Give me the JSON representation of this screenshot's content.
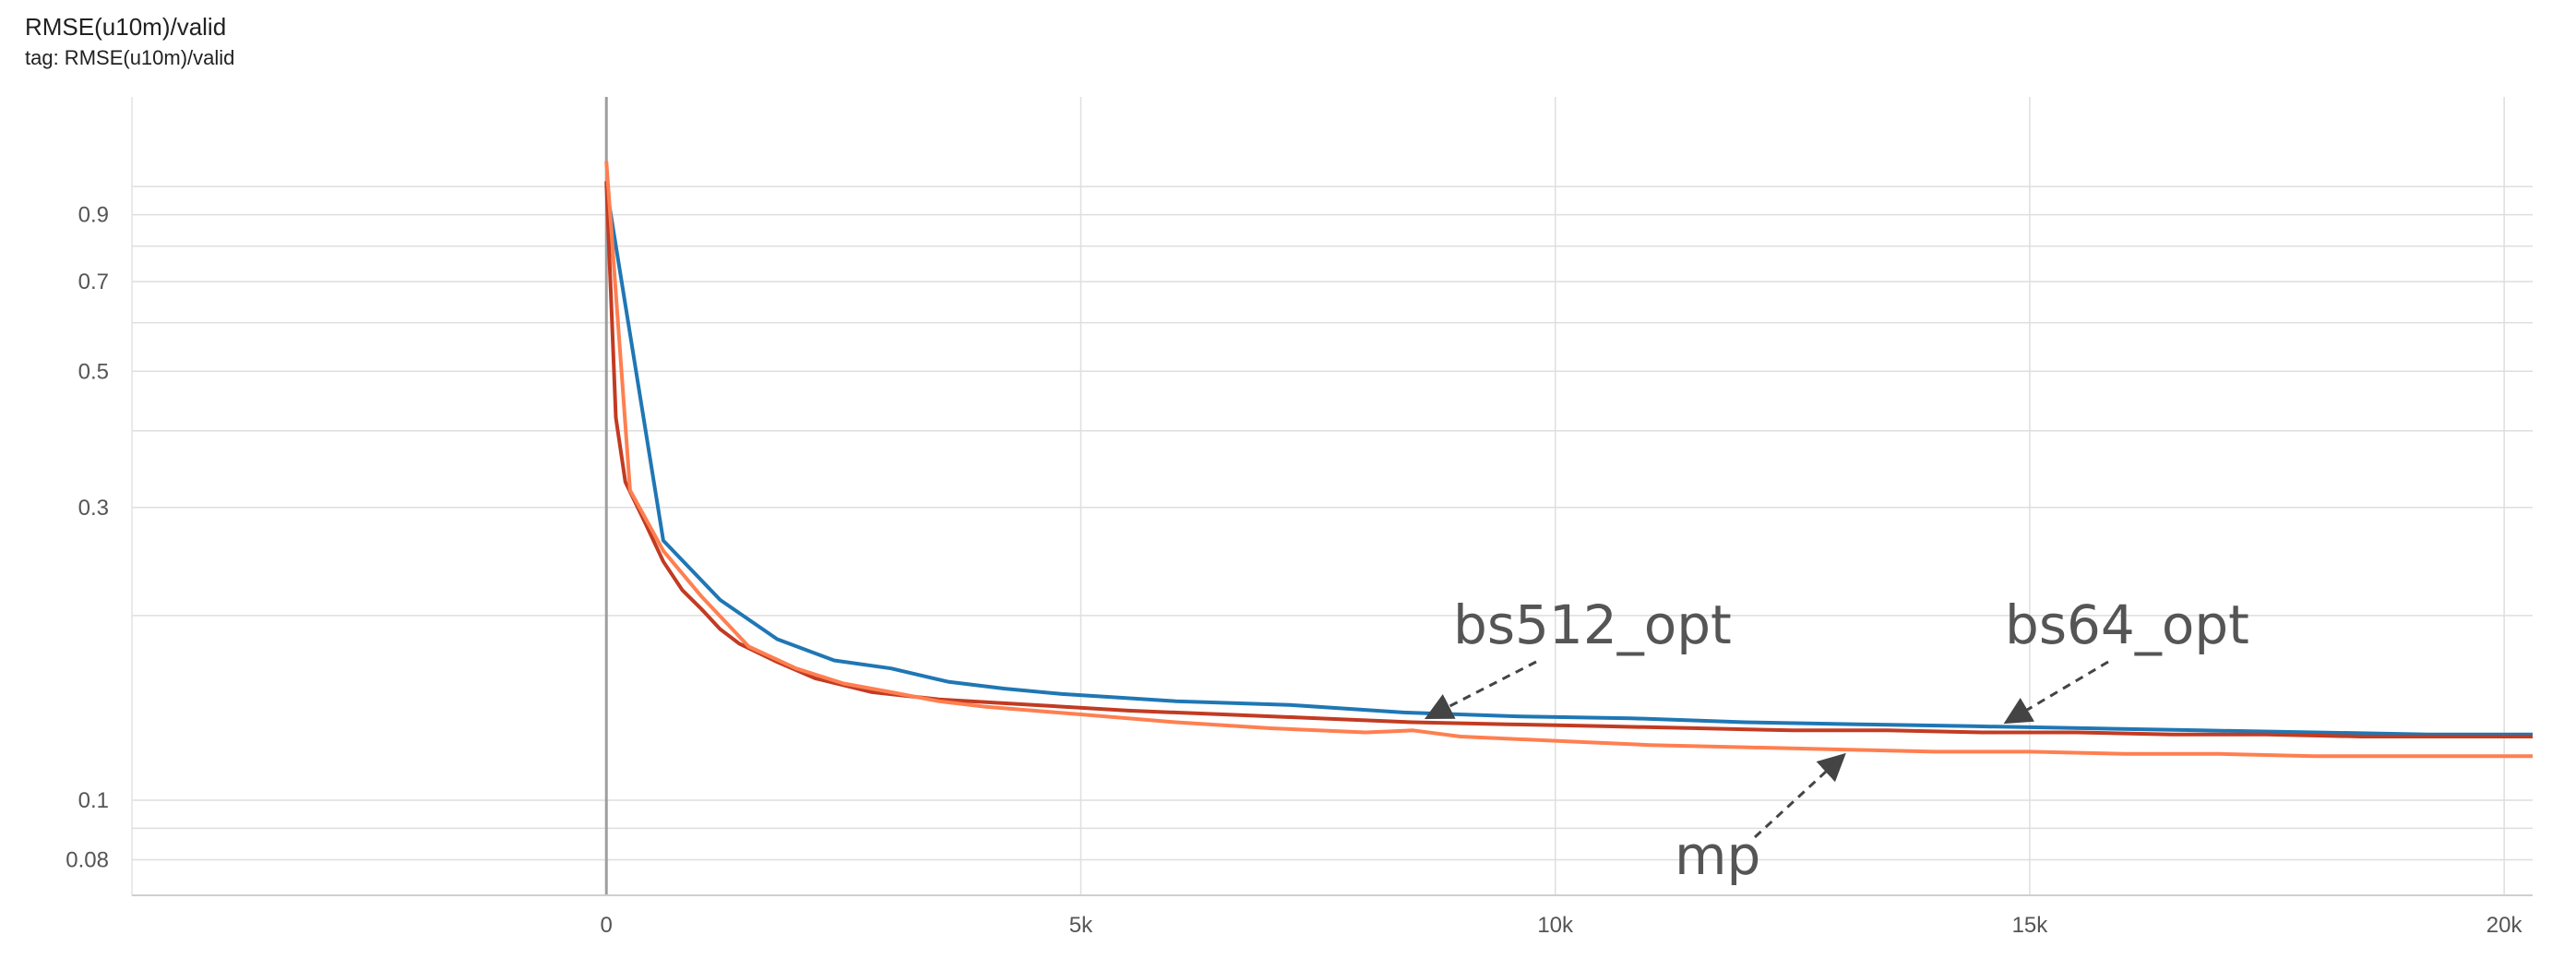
{
  "header": {
    "title": "RMSE(u10m)/valid",
    "tag": "tag: RMSE(u10m)/valid"
  },
  "chart_data": {
    "type": "line",
    "title": "RMSE(u10m)/valid",
    "xlabel": "",
    "ylabel": "",
    "y_scale": "log",
    "grid": true,
    "xlim": [
      -5000,
      20300
    ],
    "ylim": [
      0.07,
      1.4
    ],
    "x_ticks": [
      0,
      5000,
      10000,
      15000,
      20000
    ],
    "x_tick_labels": [
      "0",
      "5k",
      "10k",
      "15k",
      "20k"
    ],
    "y_ticks": [
      0.08,
      0.1,
      0.3,
      0.5,
      0.7,
      0.9
    ],
    "y_tick_labels": [
      "0.08",
      "0.1",
      "0.3",
      "0.5",
      "0.7",
      "0.9"
    ],
    "series": [
      {
        "name": "bs64_opt",
        "color": "#1f77b4",
        "x": [
          0,
          600,
          1200,
          1800,
          2400,
          3000,
          3600,
          4200,
          4800,
          5400,
          6000,
          7200,
          8400,
          9600,
          10800,
          12000,
          13200,
          14400,
          15600,
          16800,
          18000,
          19200,
          20300
        ],
        "y": [
          1.0,
          0.265,
          0.212,
          0.183,
          0.169,
          0.164,
          0.156,
          0.152,
          0.149,
          0.147,
          0.145,
          0.143,
          0.139,
          0.137,
          0.136,
          0.134,
          0.133,
          0.132,
          0.131,
          0.13,
          0.129,
          0.128,
          0.128
        ]
      },
      {
        "name": "bs512_opt",
        "color": "#c23b22",
        "x": [
          0,
          100,
          200,
          400,
          600,
          800,
          1000,
          1200,
          1400,
          1800,
          2200,
          2800,
          3500,
          4500,
          5500,
          6500,
          7500,
          8500,
          9500,
          10500,
          11500,
          12500,
          13500,
          14500,
          15500,
          16500,
          17500,
          18500,
          19500,
          20300
        ],
        "y": [
          1.02,
          0.42,
          0.33,
          0.285,
          0.245,
          0.22,
          0.205,
          0.19,
          0.18,
          0.168,
          0.158,
          0.15,
          0.146,
          0.143,
          0.14,
          0.138,
          0.136,
          0.134,
          0.133,
          0.132,
          0.131,
          0.13,
          0.13,
          0.129,
          0.129,
          0.128,
          0.128,
          0.127,
          0.127,
          0.127
        ]
      },
      {
        "name": "mp",
        "color": "#ff7f50",
        "x": [
          0,
          250,
          600,
          1000,
          1500,
          2000,
          2500,
          3000,
          3500,
          4000,
          4500,
          5000,
          6000,
          7000,
          8000,
          8500,
          9000,
          10000,
          11000,
          12000,
          13000,
          14000,
          15000,
          16000,
          17000,
          18000,
          19000,
          20300
        ],
        "y": [
          1.1,
          0.32,
          0.255,
          0.215,
          0.178,
          0.164,
          0.155,
          0.15,
          0.145,
          0.142,
          0.14,
          0.138,
          0.134,
          0.131,
          0.129,
          0.13,
          0.127,
          0.125,
          0.123,
          0.122,
          0.121,
          0.12,
          0.12,
          0.119,
          0.119,
          0.118,
          0.118,
          0.118
        ]
      }
    ],
    "annotations": [
      {
        "text": "bs512_opt",
        "series": "bs512_opt",
        "target_x": 8700
      },
      {
        "text": "bs64_opt",
        "series": "bs64_opt",
        "target_x": 14800
      },
      {
        "text": "mp",
        "series": "mp",
        "target_x": 13000
      }
    ]
  }
}
